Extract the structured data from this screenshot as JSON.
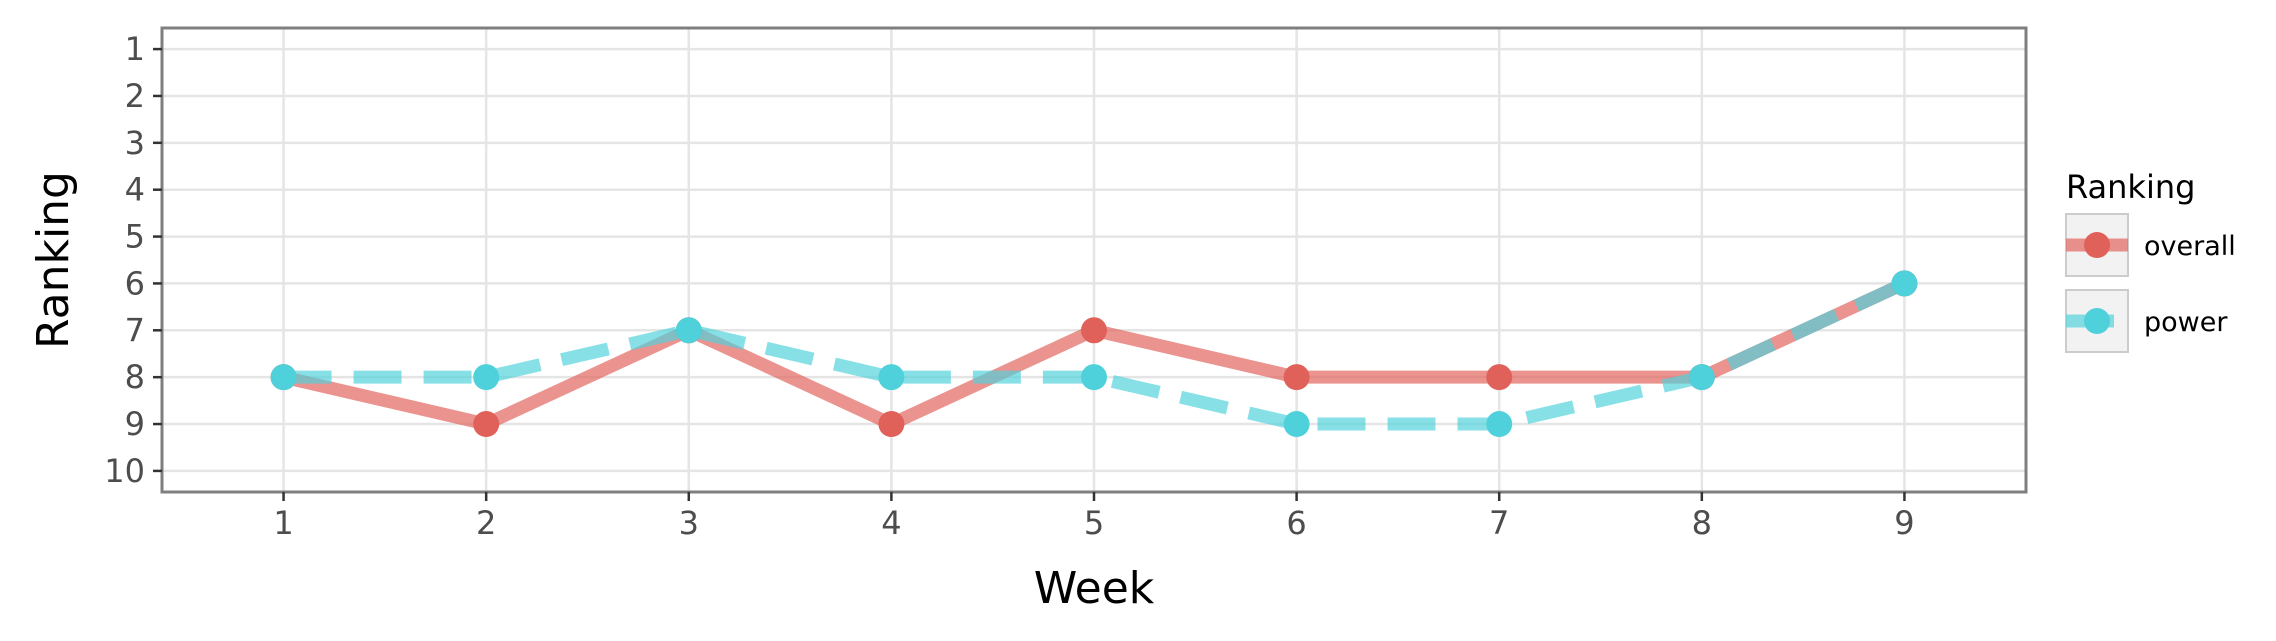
{
  "chart_data": {
    "type": "line",
    "xlabel": "Week",
    "ylabel": "Ranking",
    "x": [
      1,
      2,
      3,
      4,
      5,
      6,
      7,
      8,
      9
    ],
    "xlim": [
      0.4,
      9.6
    ],
    "ylim": [
      10.45,
      0.55
    ],
    "y_reversed": true,
    "xticks": [
      1,
      2,
      3,
      4,
      5,
      6,
      7,
      8,
      9
    ],
    "yticks": [
      1,
      2,
      3,
      4,
      5,
      6,
      7,
      8,
      9,
      10
    ],
    "grid": true,
    "legend": {
      "title": "Ranking",
      "placement": "right"
    },
    "series": [
      {
        "name": "overall",
        "values": [
          8,
          9,
          7,
          9,
          7,
          8,
          8,
          8,
          6
        ],
        "color": "#e0605a",
        "line_style": "solid"
      },
      {
        "name": "power",
        "values": [
          8,
          8,
          7,
          8,
          8,
          9,
          9,
          8,
          6
        ],
        "color": "#4fd1db",
        "line_style": "dashed"
      }
    ]
  }
}
